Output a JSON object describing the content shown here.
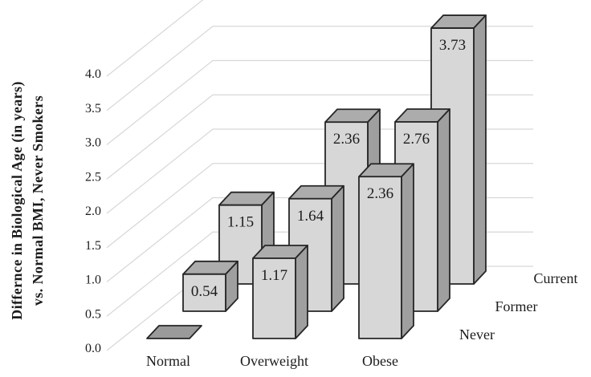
{
  "chart_data": {
    "type": "bar",
    "projection": "3d",
    "title": "",
    "ylabel_lines": [
      "Differnce in Biological Age (in years)",
      "vs. Normal BMI, Never Smokers"
    ],
    "categories": [
      "Normal",
      "Overweight",
      "Obese"
    ],
    "depth_axis_labels": [
      "Never",
      "Former",
      "Current"
    ],
    "series": [
      {
        "name": "Never",
        "values": [
          0,
          1.17,
          2.36
        ],
        "labels": [
          "",
          "1.17",
          "2.36"
        ]
      },
      {
        "name": "Former",
        "values": [
          0.54,
          1.64,
          2.76
        ],
        "labels": [
          "0.54",
          "1.64",
          "2.76"
        ]
      },
      {
        "name": "Current",
        "values": [
          1.15,
          2.36,
          3.73
        ],
        "labels": [
          "1.15",
          "2.36",
          "3.73"
        ]
      }
    ],
    "yticks": [
      "0.0",
      "0.5",
      "1.0",
      "1.5",
      "2.0",
      "2.5",
      "3.0",
      "3.5",
      "4.0"
    ],
    "ylim": [
      0,
      4.4
    ],
    "grid": true,
    "legend_position": "right-diagonal",
    "colors": {
      "background": "#ffffff",
      "bar_front": "#d7d7d7",
      "bar_top": "#acacac",
      "bar_side": "#9f9f9f",
      "zero_tile": "#9a9a9a",
      "outline": "#262626",
      "gridline": "#d7d7d7",
      "text": "#1c1c1c"
    }
  }
}
